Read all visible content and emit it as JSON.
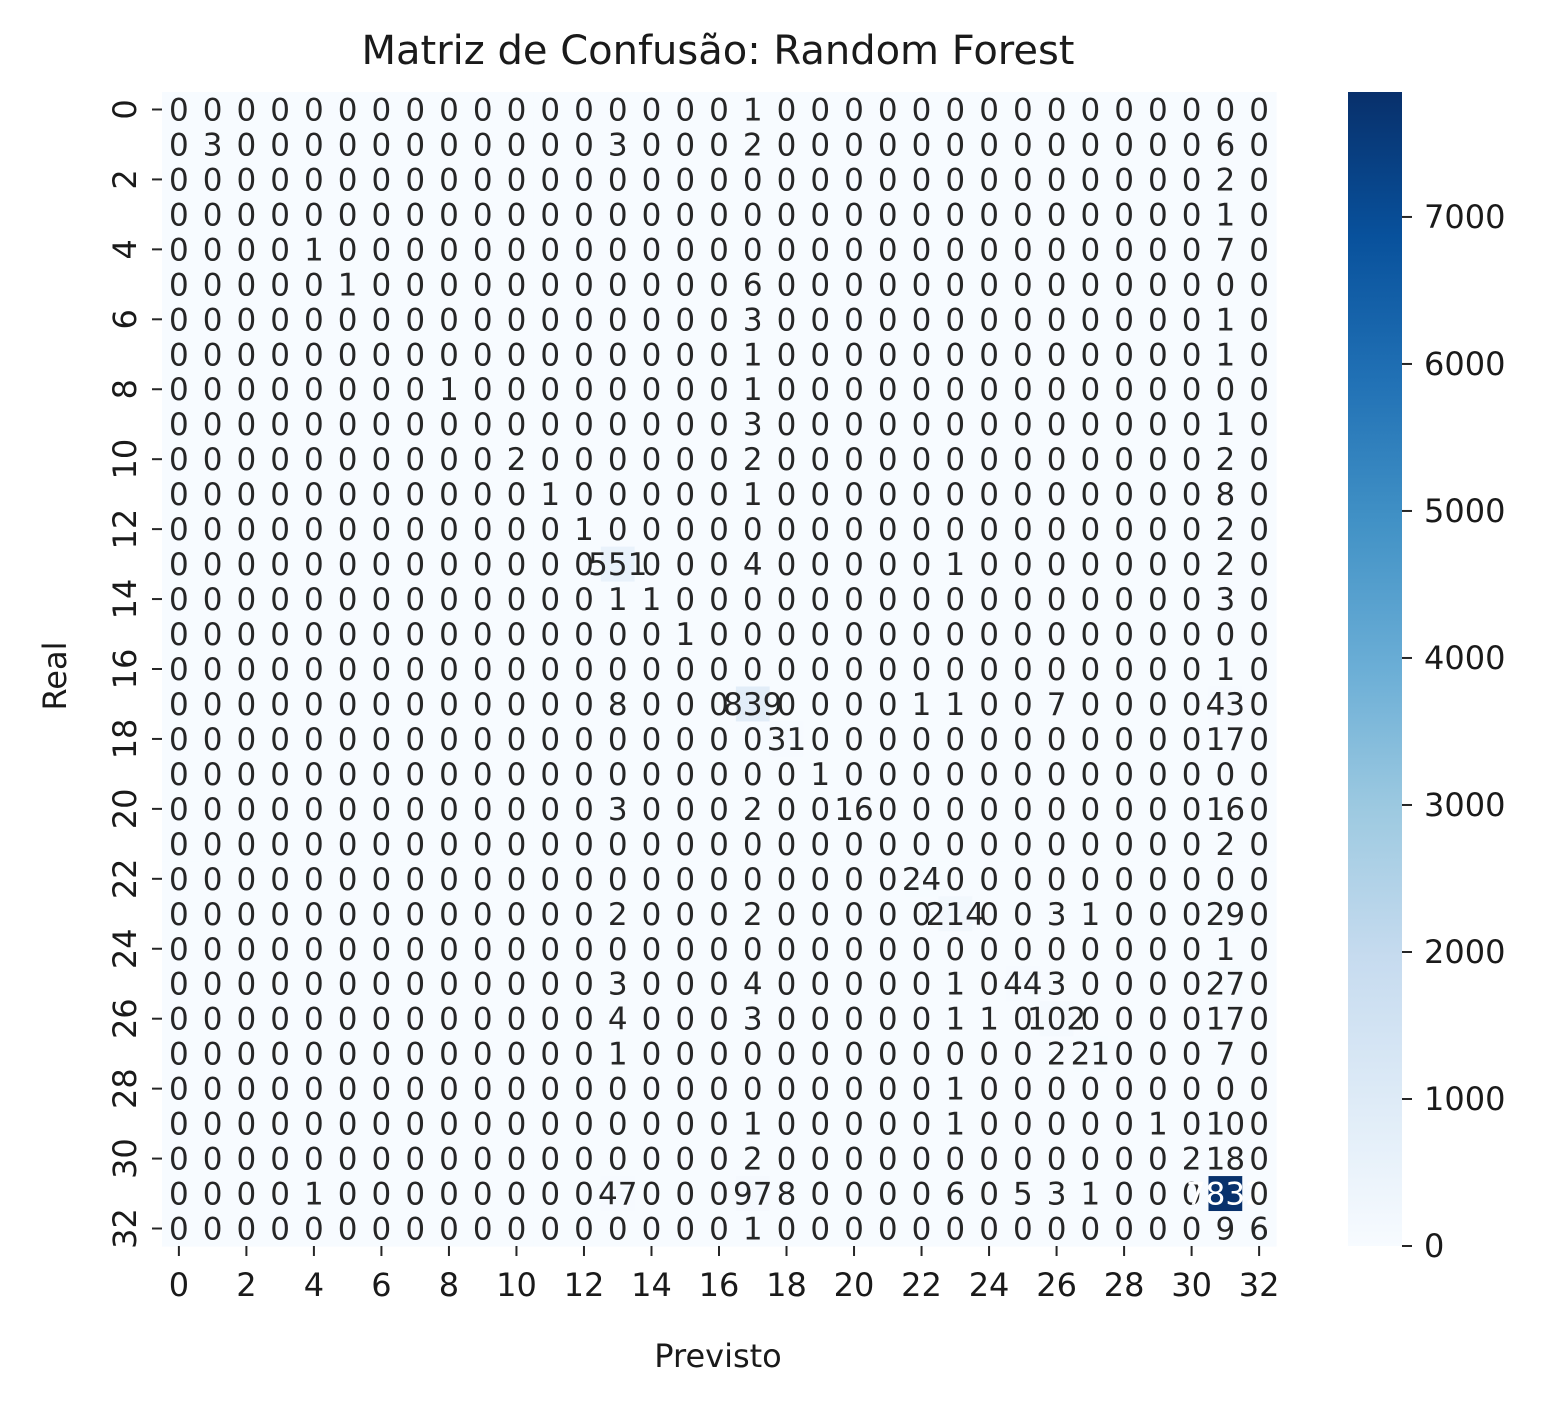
{
  "chart_data": {
    "type": "heatmap",
    "title": "Matriz de Confusão: Random Forest",
    "xlabel": "Previsto",
    "ylabel": "Real",
    "x_ticks": [
      "0",
      "2",
      "4",
      "6",
      "8",
      "10",
      "12",
      "14",
      "16",
      "18",
      "20",
      "22",
      "24",
      "26",
      "28",
      "30",
      "32"
    ],
    "y_ticks": [
      "0",
      "2",
      "4",
      "6",
      "8",
      "10",
      "12",
      "14",
      "16",
      "18",
      "20",
      "22",
      "24",
      "26",
      "28",
      "30",
      "32"
    ],
    "colormap": "Blues",
    "vmin": 0,
    "vmax": 7850,
    "colorbar_ticks": [
      "0",
      "1000",
      "2000",
      "3000",
      "4000",
      "5000",
      "6000",
      "7000"
    ],
    "rows": [
      "0 0 0 0 0 0 0 0 0 0 0 0 0 0 0 0 0 1 0 0 0 0 0 0 0 0 0 0 0 0 0 0 0",
      "0 3 0 0 0 0 0 0 0 0 0 0 0 3 0 0 0 2 0 0 0 0 0 0 0 0 0 0 0 0 0 6 0",
      "0 0 0 0 0 0 0 0 0 0 0 0 0 0 0 0 0 0 0 0 0 0 0 0 0 0 0 0 0 0 0 2 0",
      "0 0 0 0 0 0 0 0 0 0 0 0 0 0 0 0 0 0 0 0 0 0 0 0 0 0 0 0 0 0 0 1 0",
      "0 0 0 0 1 0 0 0 0 0 0 0 0 0 0 0 0 0 0 0 0 0 0 0 0 0 0 0 0 0 0 7 0",
      "0 0 0 0 0 1 0 0 0 0 0 0 0 0 0 0 0 6 0 0 0 0 0 0 0 0 0 0 0 0 0 0 0",
      "0 0 0 0 0 0 0 0 0 0 0 0 0 0 0 0 0 3 0 0 0 0 0 0 0 0 0 0 0 0 0 1 0",
      "0 0 0 0 0 0 0 0 0 0 0 0 0 0 0 0 0 1 0 0 0 0 0 0 0 0 0 0 0 0 0 1 0",
      "0 0 0 0 0 0 0 0 1 0 0 0 0 0 0 0 0 1 0 0 0 0 0 0 0 0 0 0 0 0 0 0 0",
      "0 0 0 0 0 0 0 0 0 0 0 0 0 0 0 0 0 3 0 0 0 0 0 0 0 0 0 0 0 0 0 1 0",
      "0 0 0 0 0 0 0 0 0 0 2 0 0 0 0 0 0 2 0 0 0 0 0 0 0 0 0 0 0 0 0 2 0",
      "0 0 0 0 0 0 0 0 0 0 0 1 0 0 0 0 0 1 0 0 0 0 0 0 0 0 0 0 0 0 0 8 0",
      "0 0 0 0 0 0 0 0 0 0 0 0 1 0 0 0 0 0 0 0 0 0 0 0 0 0 0 0 0 0 0 2 0",
      "0 0 0 0 0 0 0 0 0 0 0 0 0 551 0 0 0 4 0 0 0 0 0 1 0 0 0 0 0 0 0 2 0",
      "0 0 0 0 0 0 0 0 0 0 0 0 0 1 1 0 0 0 0 0 0 0 0 0 0 0 0 0 0 0 0 3 0",
      "0 0 0 0 0 0 0 0 0 0 0 0 0 0 0 1 0 0 0 0 0 0 0 0 0 0 0 0 0 0 0 0 0",
      "0 0 0 0 0 0 0 0 0 0 0 0 0 0 0 0 0 0 0 0 0 0 0 0 0 0 0 0 0 0 0 1 0",
      "0 0 0 0 0 0 0 0 0 0 0 0 0 8 0 0 0 839 0 0 0 0 1 1 0 0 7 0 0 0 0 43 0",
      "0 0 0 0 0 0 0 0 0 0 0 0 0 0 0 0 0 0 31 0 0 0 0 0 0 0 0 0 0 0 0 17 0",
      "0 0 0 0 0 0 0 0 0 0 0 0 0 0 0 0 0 0 0 1 0 0 0 0 0 0 0 0 0 0 0 0 0",
      "0 0 0 0 0 0 0 0 0 0 0 0 0 3 0 0 0 2 0 0 16 0 0 0 0 0 0 0 0 0 0 16 0",
      "0 0 0 0 0 0 0 0 0 0 0 0 0 0 0 0 0 0 0 0 0 0 0 0 0 0 0 0 0 0 0 2 0",
      "0 0 0 0 0 0 0 0 0 0 0 0 0 0 0 0 0 0 0 0 0 0 24 0 0 0 0 0 0 0 0 0 0",
      "0 0 0 0 0 0 0 0 0 0 0 0 0 2 0 0 0 2 0 0 0 0 0 214 0 0 3 1 0 0 0 29 0",
      "0 0 0 0 0 0 0 0 0 0 0 0 0 0 0 0 0 0 0 0 0 0 0 0 0 0 0 0 0 0 0 1 0",
      "0 0 0 0 0 0 0 0 0 0 0 0 0 3 0 0 0 4 0 0 0 0 0 1 0 44 3 0 0 0 0 27 0",
      "0 0 0 0 0 0 0 0 0 0 0 0 0 4 0 0 0 3 0 0 0 0 0 1 1 0 102 0 0 0 0 17 0",
      "0 0 0 0 0 0 0 0 0 0 0 0 0 1 0 0 0 0 0 0 0 0 0 0 0 0 2 21 0 0 0 7 0",
      "0 0 0 0 0 0 0 0 0 0 0 0 0 0 0 0 0 0 0 0 0 0 0 1 0 0 0 0 0 0 0 0 0",
      "0 0 0 0 0 0 0 0 0 0 0 0 0 0 0 0 0 1 0 0 0 0 0 1 0 0 0 0 0 1 0 10 0",
      "0 0 0 0 0 0 0 0 0 0 0 0 0 0 0 0 0 2 0 0 0 0 0 0 0 0 0 0 0 0 2 18 0",
      "0 0 0 0 1 0 0 0 0 0 0 0 0 47 0 0 0 97 8 0 0 0 0 6 0 5 3 1 0 0 0 7832 0",
      "0 0 0 0 0 0 0 0 0 0 0 0 0 0 0 0 0 1 0 0 0 0 0 0 0 0 0 0 0 0 0 9 6"
    ]
  }
}
